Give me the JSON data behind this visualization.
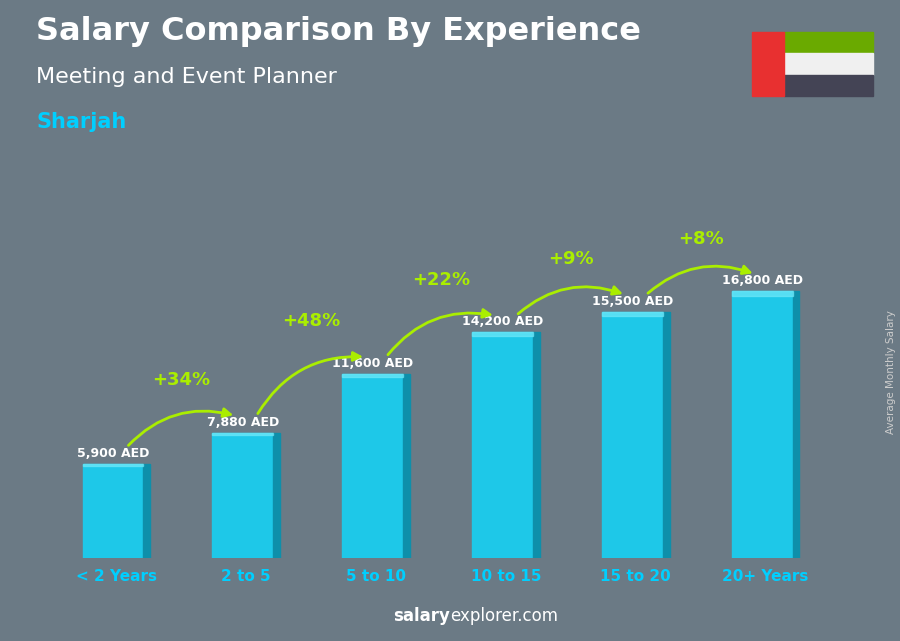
{
  "title_line1": "Salary Comparison By Experience",
  "title_line2": "Meeting and Event Planner",
  "city": "Sharjah",
  "categories": [
    "< 2 Years",
    "2 to 5",
    "5 to 10",
    "10 to 15",
    "15 to 20",
    "20+ Years"
  ],
  "values": [
    5900,
    7880,
    11600,
    14200,
    15500,
    16800
  ],
  "labels": [
    "5,900 AED",
    "7,880 AED",
    "11,600 AED",
    "14,200 AED",
    "15,500 AED",
    "16,800 AED"
  ],
  "pct_changes": [
    "+34%",
    "+48%",
    "+22%",
    "+9%",
    "+8%"
  ],
  "bar_color_face": "#1EC8E8",
  "bar_color_right": "#0E8FAA",
  "bar_color_top": "#6EE8F8",
  "bg_color": "#6b7a85",
  "title_color": "#FFFFFF",
  "subtitle_color": "#FFFFFF",
  "city_color": "#00CFFF",
  "label_color": "#FFFFFF",
  "pct_color": "#AAEE00",
  "xlabel_color": "#00CFFF",
  "watermark_bold": "salary",
  "watermark_rest": "explorer.com",
  "watermark_color": "#FFFFFF",
  "ylabel_text": "Average Monthly Salary",
  "ylim": [
    0,
    21000
  ],
  "flag_bg": "#5a6570",
  "flag_green": "#6aaa00",
  "flag_white": "#f0f0f0",
  "flag_black": "#444455",
  "flag_red": "#e83030"
}
